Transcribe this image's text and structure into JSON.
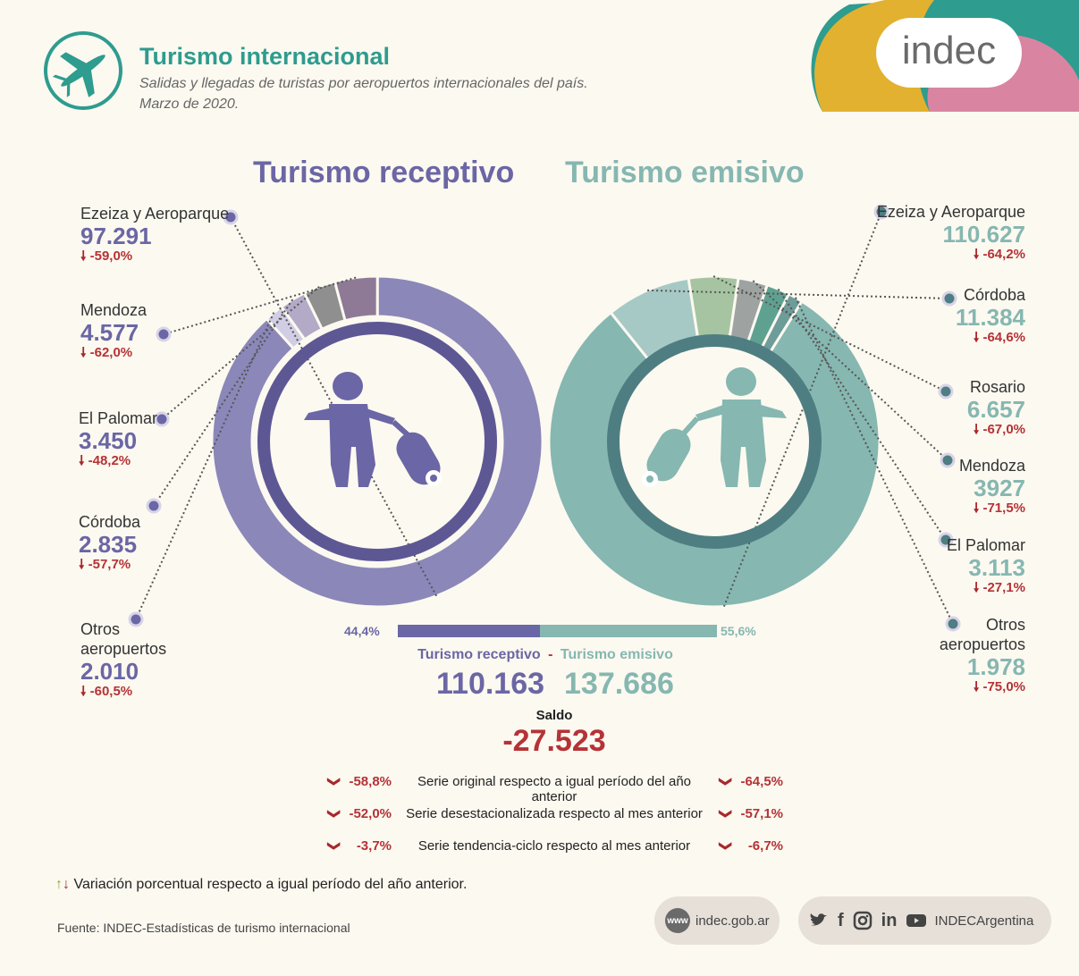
{
  "header": {
    "title": "Turismo internacional",
    "subtitle_line1": "Salidas y llegadas de turistas por aeropuertos internacionales del país.",
    "subtitle_line2": "Marzo de 2020.",
    "logo_text": "indec"
  },
  "colors": {
    "receptivo": "#8b87b9",
    "receptivo_dark": "#5d5894",
    "emisivo": "#86b7b1",
    "emisivo_dark": "#4f7e82",
    "negative": "#b53236",
    "background": "#fcf9f0"
  },
  "chart_data": [
    {
      "type": "pie",
      "variant": "donut",
      "title": "Turismo receptivo",
      "categories": [
        "Ezeiza y Aeroparque",
        "Mendoza",
        "El Palomar",
        "Córdoba",
        "Otros aeropuertos"
      ],
      "values": [
        97291,
        4577,
        3450,
        2835,
        2010
      ],
      "value_labels": [
        "97.291",
        "4.577",
        "3.450",
        "2.835",
        "2.010"
      ],
      "variation_labels": [
        "-59,0%",
        "-62,0%",
        "-48,2%",
        "-57,7%",
        "-60,5%"
      ]
    },
    {
      "type": "pie",
      "variant": "donut",
      "title": "Turismo emisivo",
      "categories": [
        "Ezeiza y Aeroparque",
        "Córdoba",
        "Rosario",
        "Mendoza",
        "El Palomar",
        "Otros aeropuertos"
      ],
      "values": [
        110627,
        11384,
        6657,
        3927,
        3113,
        1978
      ],
      "value_labels": [
        "110.627",
        "11.384",
        "6.657",
        "3927",
        "3.113",
        "1.978"
      ],
      "variation_labels": [
        "-64,2%",
        "-64,6%",
        "-67,0%",
        "-71,5%",
        "-27,1%",
        "-75,0%"
      ]
    },
    {
      "type": "bar",
      "orientation": "horizontal-stacked",
      "categories": [
        "Turismo receptivo",
        "Turismo emisivo"
      ],
      "values": [
        44.4,
        55.6
      ],
      "value_labels": [
        "44,4%",
        "55,6%"
      ]
    }
  ],
  "summary": {
    "rec_label": "Turismo receptivo",
    "separator": "-",
    "emi_label": "Turismo emisivo",
    "rec_total": "110.163",
    "emi_total": "137.686",
    "saldo_label": "Saldo",
    "saldo_value": "-27.523"
  },
  "variations": [
    {
      "rec": "-58,8%",
      "label": "Serie original respecto a igual período del año anterior",
      "emi": "-64,5%"
    },
    {
      "rec": "-52,0%",
      "label": "Serie desestacionalizada respecto al mes anterior",
      "emi": "-57,1%"
    },
    {
      "rec": "-3,7%",
      "label": "Serie tendencia-ciclo respecto al mes anterior",
      "emi": "-6,7%"
    }
  ],
  "legend_note": "Variación porcentual respecto a igual período del año anterior.",
  "footer": {
    "source": "Fuente: INDEC-Estadísticas de turismo internacional",
    "web_badge": "www",
    "website": "indec.gob.ar",
    "social_handle": "INDECArgentina"
  }
}
